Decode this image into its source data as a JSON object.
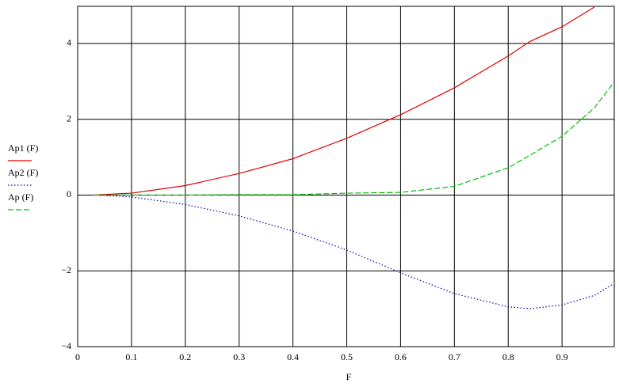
{
  "chart_data": {
    "type": "line",
    "xlabel": "F",
    "x": [
      0.03,
      0.1,
      0.2,
      0.3,
      0.4,
      0.5,
      0.6,
      0.7,
      0.8,
      0.84,
      0.9,
      0.96,
      0.995
    ],
    "series": [
      {
        "name": "Ap1 (F)",
        "color": "#e00000",
        "dash": "solid",
        "values": [
          0,
          0.05,
          0.25,
          0.57,
          0.96,
          1.5,
          2.12,
          2.83,
          3.67,
          4.05,
          4.44,
          4.96,
          null
        ]
      },
      {
        "name": "Ap2 (F)",
        "color": "#0000c0",
        "dash": "dotted",
        "values": [
          0,
          -0.05,
          -0.25,
          -0.55,
          -0.95,
          -1.45,
          -2.05,
          -2.6,
          -2.95,
          -3.0,
          -2.9,
          -2.65,
          -2.35
        ]
      },
      {
        "name": "Ap (F)",
        "color": "#00c000",
        "dash": "dashed",
        "values": [
          0,
          0,
          0,
          0.01,
          0.01,
          0.05,
          0.07,
          0.23,
          0.72,
          1.05,
          1.55,
          2.3,
          2.95
        ]
      }
    ],
    "xlim": [
      0,
      0.997
    ],
    "ylim": [
      -4,
      4.98
    ],
    "xticks": [
      0,
      0.1,
      0.2,
      0.3,
      0.4,
      0.5,
      0.6,
      0.7,
      0.8,
      0.9
    ],
    "yticks": [
      {
        "value": -4,
        "label": "−4"
      },
      {
        "value": -2,
        "label": "−2"
      },
      0,
      2,
      4
    ],
    "grid": true,
    "legend": "left"
  }
}
